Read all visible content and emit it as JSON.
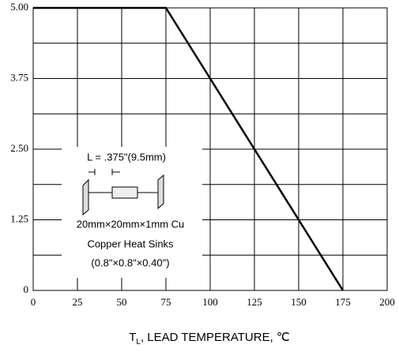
{
  "chart_data": {
    "type": "line",
    "x": [
      0,
      75,
      175
    ],
    "series": [
      {
        "color": "#000000",
        "values": [
          5,
          5,
          0
        ]
      }
    ],
    "xlim": [
      0,
      200
    ],
    "xticks": [
      0,
      25,
      50,
      75,
      100,
      125,
      150,
      175,
      200
    ],
    "ylim": [
      0,
      5
    ],
    "yticks": [
      0,
      1.25,
      {
        "value": 2.5,
        "label": "2.50"
      },
      3.75,
      {
        "value": 5,
        "label": "5.00"
      }
    ],
    "yminor": [
      0.625,
      1.875,
      3.125,
      4.375
    ],
    "grid": true,
    "xlabel": {
      "main": "T",
      "sub": "L",
      "rest": ", LEAD TEMPERATURE, ℃"
    },
    "annotation": [
      "L = .375\"(9.5mm)",
      "20mm×20mm×1mm Cu",
      "Copper Heat Sinks",
      "(0.8\"×0.8\"×0.40\")"
    ]
  }
}
